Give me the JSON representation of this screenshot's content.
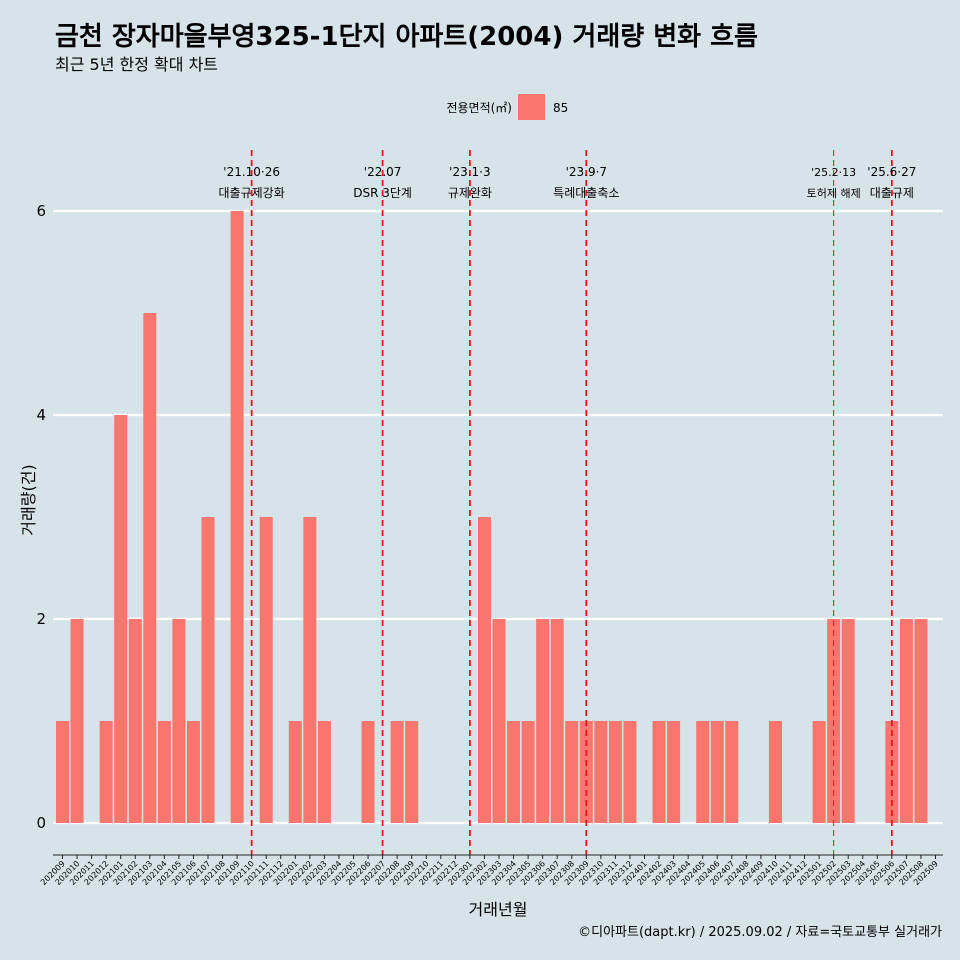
{
  "chart_data": {
    "type": "bar",
    "title": "금천 장자마을부영325-1단지 아파트(2004) 거래량 변화 흐름",
    "subtitle": "최근 5년 한정 확대 차트",
    "legend": {
      "title": "전용면적(㎡)",
      "entries": [
        {
          "label": "85",
          "color": "#f8766d"
        }
      ],
      "position": "top"
    },
    "xlabel": "거래년월",
    "ylabel": "거래량(건)",
    "ylim": [
      0,
      6
    ],
    "yticks": [
      0,
      2,
      4,
      6
    ],
    "grid": true,
    "bar_color": "#f8766d",
    "categories": [
      "202009",
      "202010",
      "202011",
      "202012",
      "202101",
      "202102",
      "202103",
      "202104",
      "202105",
      "202106",
      "202107",
      "202108",
      "202109",
      "202110",
      "202111",
      "202112",
      "202201",
      "202202",
      "202203",
      "202204",
      "202205",
      "202206",
      "202207",
      "202208",
      "202209",
      "202210",
      "202211",
      "202212",
      "202301",
      "202302",
      "202303",
      "202304",
      "202305",
      "202306",
      "202307",
      "202308",
      "202309",
      "202310",
      "202311",
      "202312",
      "202401",
      "202402",
      "202403",
      "202404",
      "202405",
      "202406",
      "202407",
      "202408",
      "202409",
      "202410",
      "202411",
      "202412",
      "202501",
      "202502",
      "202503",
      "202504",
      "202505",
      "202506",
      "202507",
      "202508",
      "202509"
    ],
    "values": [
      1,
      2,
      0,
      1,
      4,
      2,
      5,
      1,
      2,
      1,
      3,
      0,
      6,
      0,
      3,
      0,
      1,
      3,
      1,
      0,
      0,
      1,
      0,
      1,
      1,
      0,
      0,
      0,
      0,
      3,
      2,
      1,
      1,
      2,
      2,
      1,
      1,
      1,
      1,
      1,
      0,
      1,
      1,
      0,
      1,
      1,
      1,
      0,
      0,
      1,
      0,
      0,
      1,
      2,
      2,
      0,
      0,
      1,
      2,
      2,
      0
    ],
    "events": [
      {
        "date": "'21.10·26",
        "label": "대출규제강화",
        "at": "202110"
      },
      {
        "date": "'22.07",
        "label": "DSR 3단계",
        "at": "202207"
      },
      {
        "date": "'23.1·3",
        "label": "규제완화",
        "at": "202301"
      },
      {
        "date": "'23.9·7",
        "label": "특례대출축소",
        "at": "202309"
      },
      {
        "date": "'25.2·13",
        "label": "토허제 해제",
        "at": "202502",
        "style": "thin"
      },
      {
        "date": "'25.6·27",
        "label": "대출규제",
        "at": "202506"
      }
    ],
    "event_color": "#e8141e",
    "caption": "©디아파트(dapt.kr) / 2025.09.02 / 자료=국토교통부 실거래가"
  }
}
